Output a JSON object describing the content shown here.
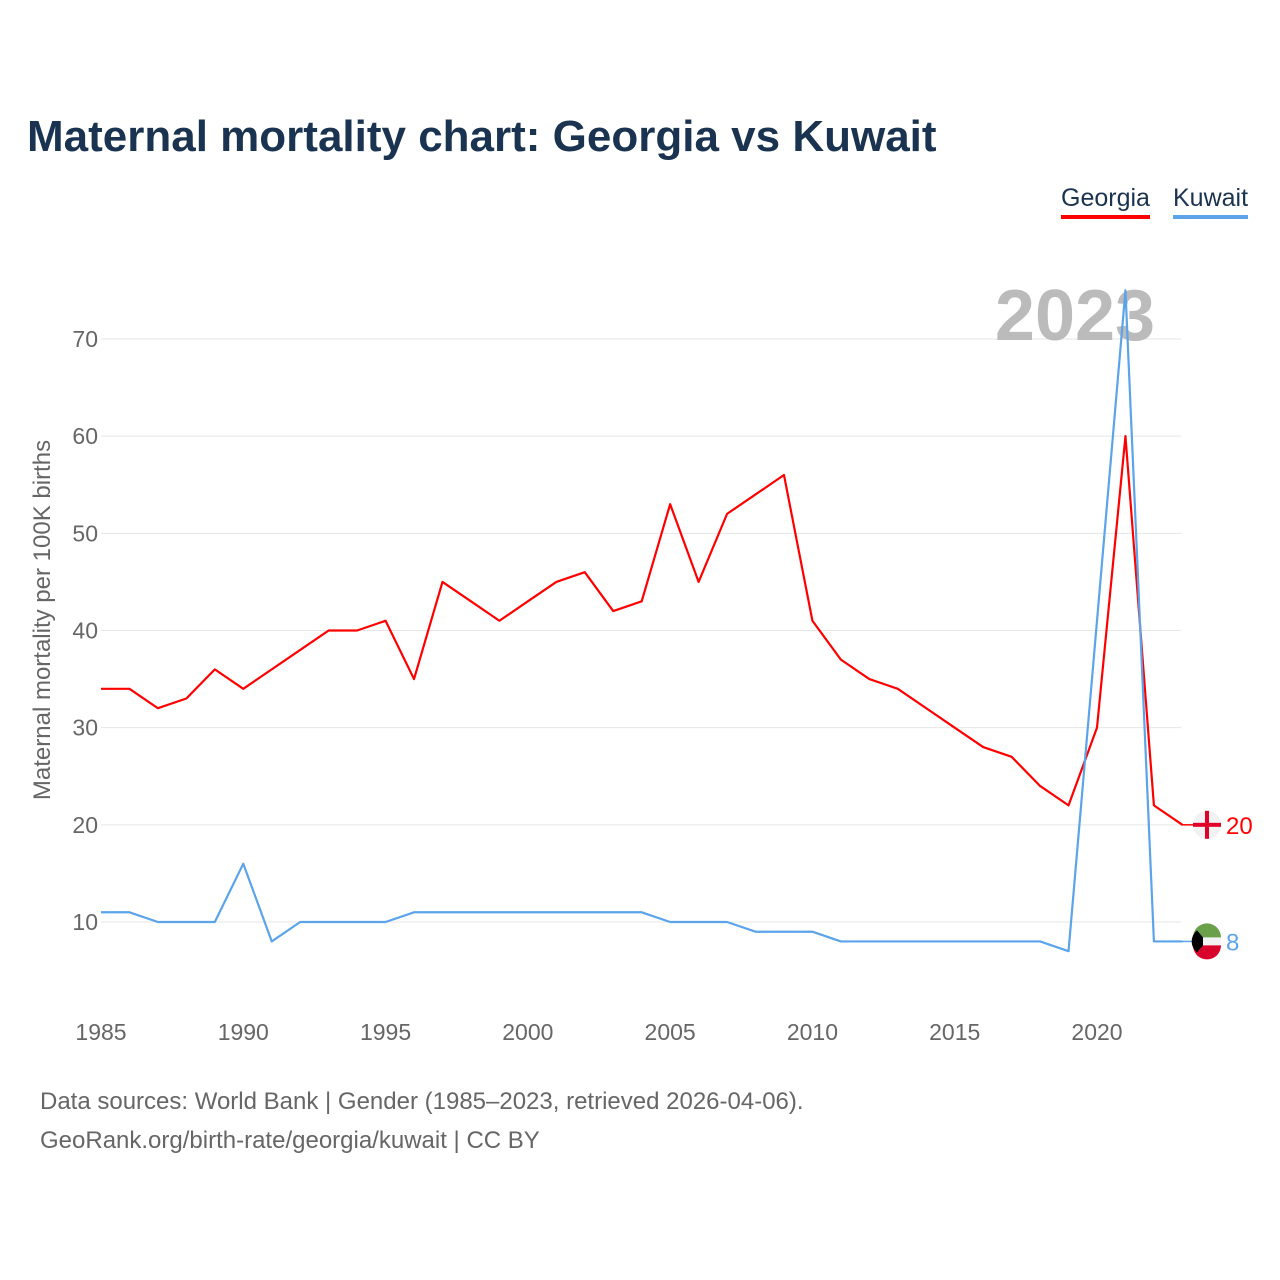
{
  "title": "Maternal mortality chart: Georgia vs Kuwait",
  "footer": {
    "line1": "Data sources: World Bank | Gender (1985–2023, retrieved 2026-04-06).",
    "line2": "GeoRank.org/birth-rate/georgia/kuwait | CC BY"
  },
  "chart_data": {
    "type": "line",
    "title": "Maternal mortality chart: Georgia vs Kuwait",
    "ylabel": "Maternal mortality per 100K births",
    "xlabel": "",
    "year_label": "2023",
    "x": [
      1985,
      1986,
      1987,
      1988,
      1989,
      1990,
      1991,
      1992,
      1993,
      1994,
      1995,
      1996,
      1997,
      1998,
      1999,
      2000,
      2001,
      2002,
      2003,
      2004,
      2005,
      2006,
      2007,
      2008,
      2009,
      2010,
      2011,
      2012,
      2013,
      2014,
      2015,
      2016,
      2017,
      2018,
      2019,
      2020,
      2021,
      2022,
      2023
    ],
    "xticks": [
      "1985",
      "1990",
      "1995",
      "2000",
      "2005",
      "2010",
      "2015",
      "2020"
    ],
    "yticks": [
      "10",
      "20",
      "30",
      "40",
      "50",
      "60",
      "70"
    ],
    "xlim": [
      1985,
      2023
    ],
    "ylim": [
      1,
      77
    ],
    "grid": true,
    "legend_position": "top-right",
    "series": [
      {
        "name": "Georgia",
        "color": "#ff0000",
        "end_label": "20",
        "values": [
          34,
          34,
          32,
          33,
          36,
          34,
          36,
          38,
          40,
          40,
          41,
          35,
          45,
          43,
          41,
          43,
          45,
          46,
          42,
          43,
          53,
          45,
          52,
          54,
          56,
          41,
          37,
          35,
          34,
          32,
          30,
          28,
          27,
          24,
          22,
          30,
          60,
          22,
          20
        ]
      },
      {
        "name": "Kuwait",
        "color": "#5ba4ea",
        "end_label": "8",
        "values": [
          11,
          11,
          10,
          10,
          10,
          16,
          8,
          10,
          10,
          10,
          10,
          11,
          11,
          11,
          11,
          11,
          11,
          11,
          11,
          11,
          10,
          10,
          10,
          9,
          9,
          9,
          8,
          8,
          8,
          8,
          8,
          8,
          8,
          8,
          7,
          41,
          75,
          8,
          8
        ]
      }
    ]
  }
}
